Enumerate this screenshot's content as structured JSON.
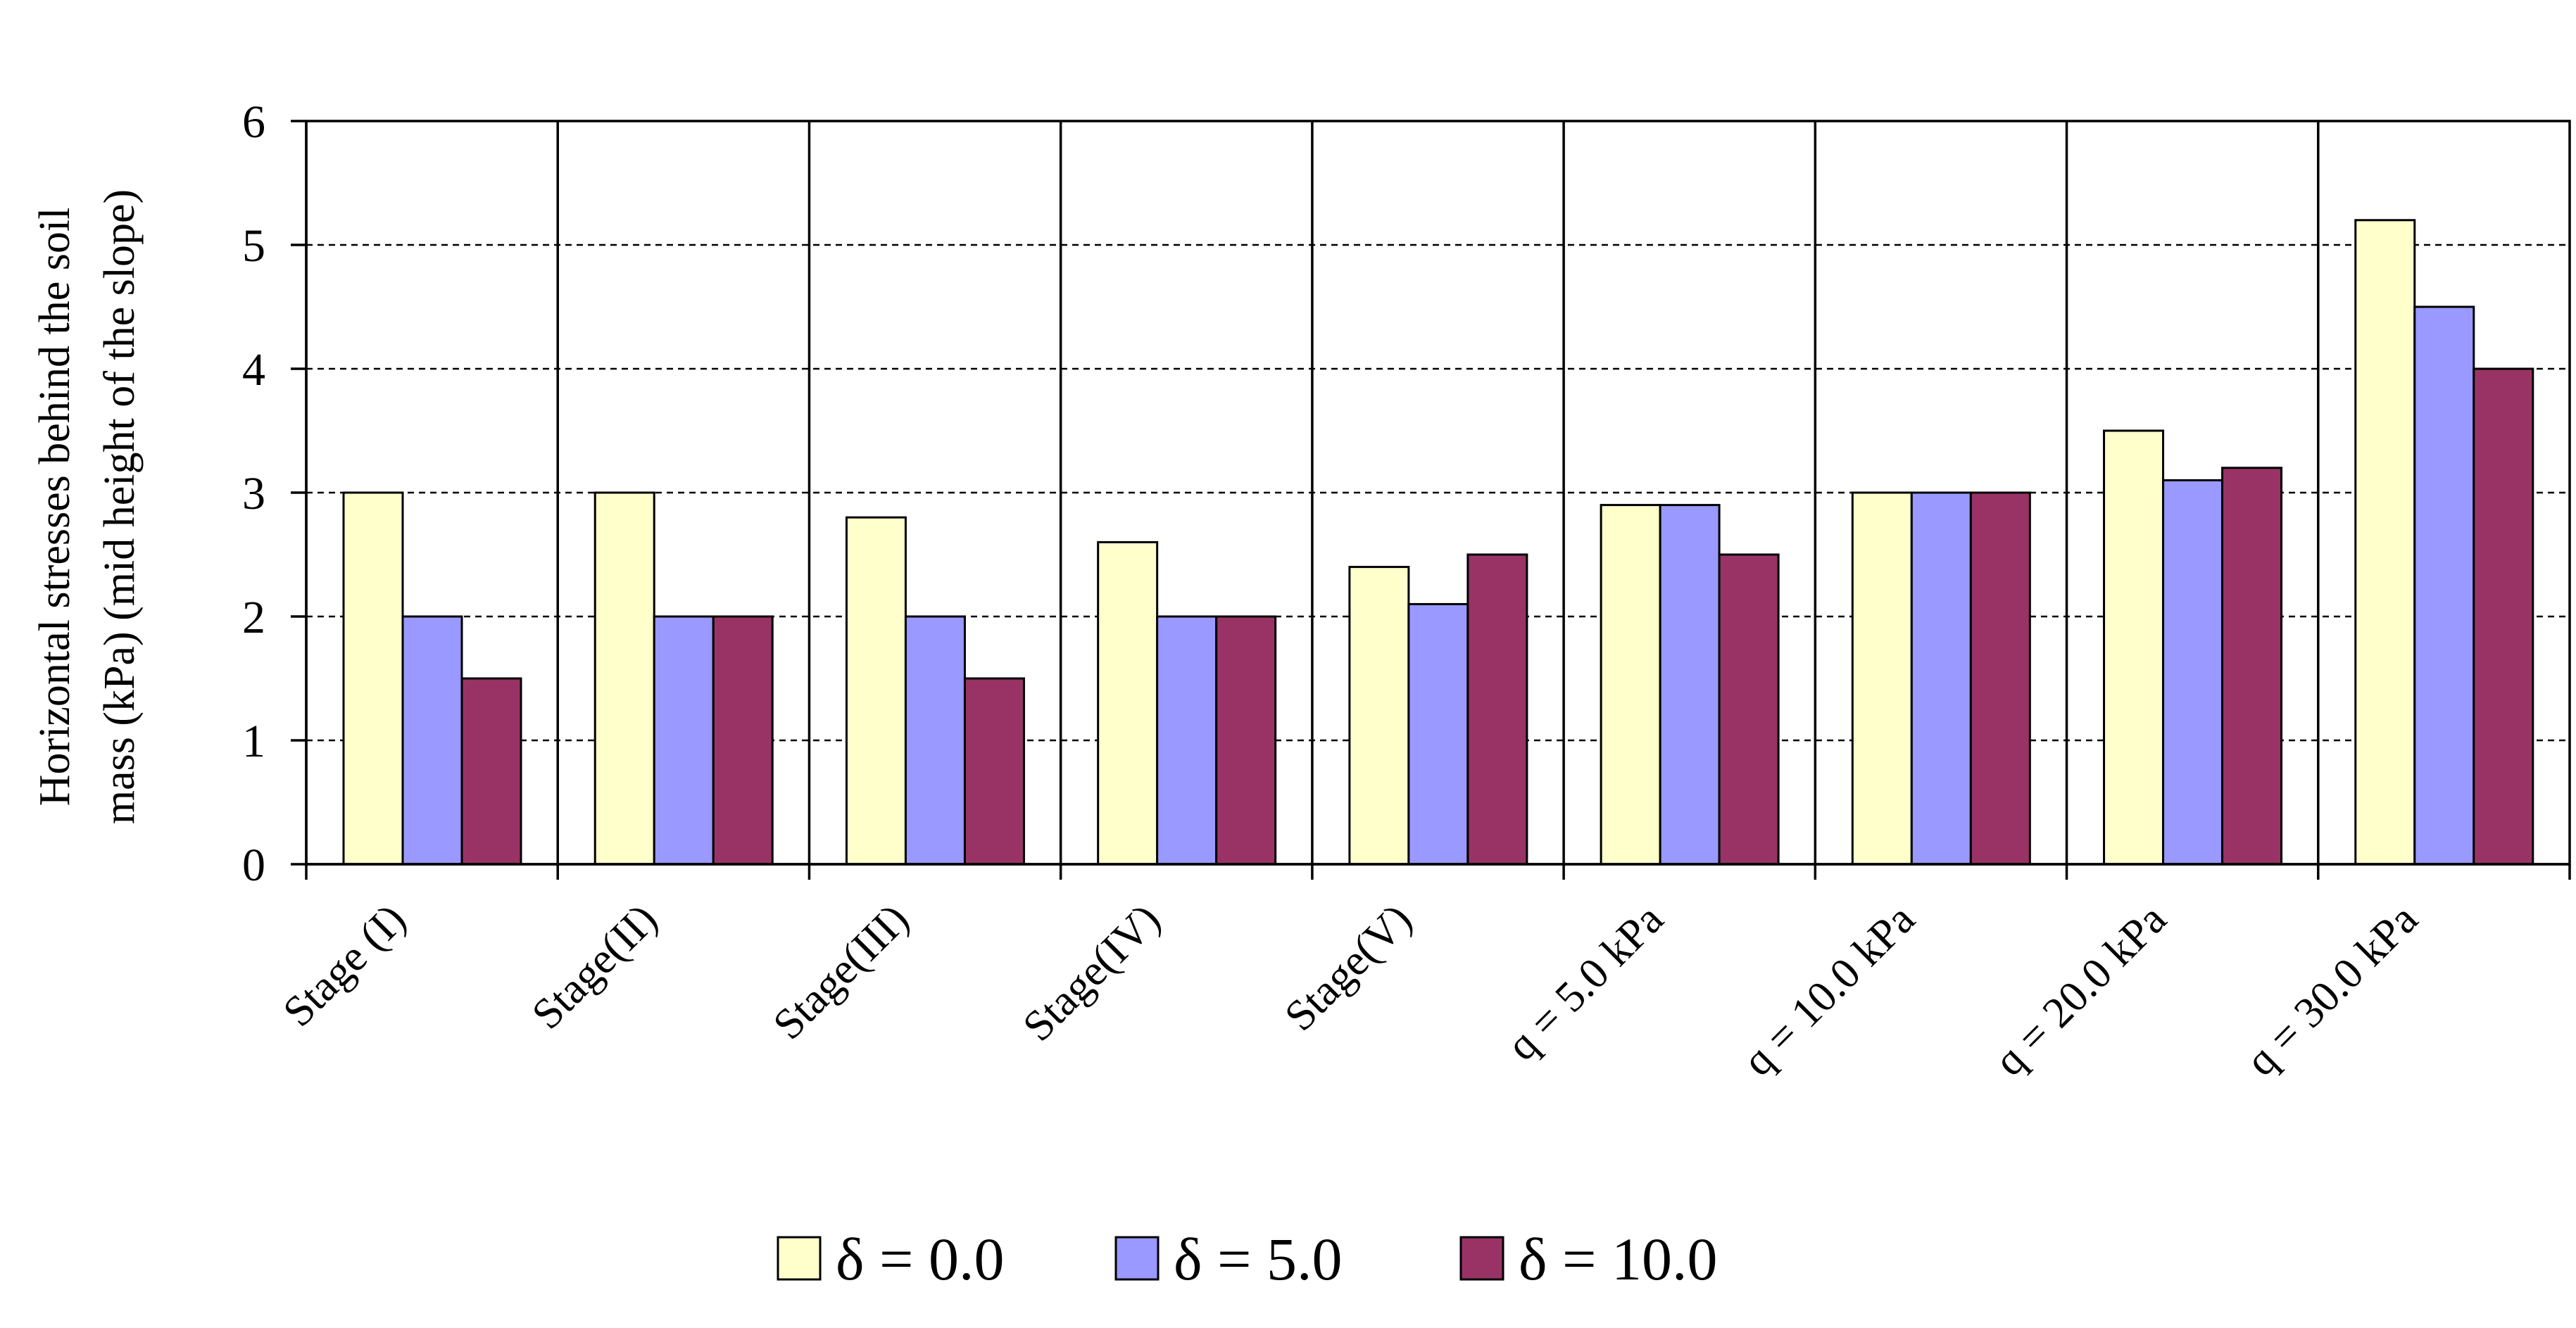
{
  "chart_data": {
    "type": "bar",
    "title": "",
    "xlabel": "",
    "ylabel_lines": [
      "Horizontal stresses behind the soil",
      "mass (kPa) (mid height of the slope)"
    ],
    "ylim": [
      0,
      6
    ],
    "yticks": [
      "0",
      "1",
      "2",
      "3",
      "4",
      "5",
      "6"
    ],
    "grid": "horizontal dashed at y = 1..5; vertical solid separators between categories",
    "legend_position": "bottom-center",
    "categories": [
      "Stage (I)",
      "Stage(II)",
      "Stage(III)",
      "Stage(IV)",
      "Stage(V)",
      "q = 5.0 kPa",
      "q = 10.0 kPa",
      "q = 20.0 kPa",
      "q = 30.0 kPa"
    ],
    "series": [
      {
        "name": "δ = 0.0",
        "color": "#FFFFCC",
        "values": [
          3.0,
          3.0,
          2.8,
          2.6,
          2.4,
          2.9,
          3.0,
          3.5,
          5.2
        ]
      },
      {
        "name": "δ = 5.0",
        "color": "#9999FF",
        "values": [
          2.0,
          2.0,
          2.0,
          2.0,
          2.1,
          2.9,
          3.0,
          3.1,
          4.5
        ]
      },
      {
        "name": "δ = 10.0",
        "color": "#993366",
        "values": [
          1.5,
          2.0,
          1.5,
          2.0,
          2.5,
          2.5,
          3.0,
          3.2,
          4.0
        ]
      }
    ]
  }
}
